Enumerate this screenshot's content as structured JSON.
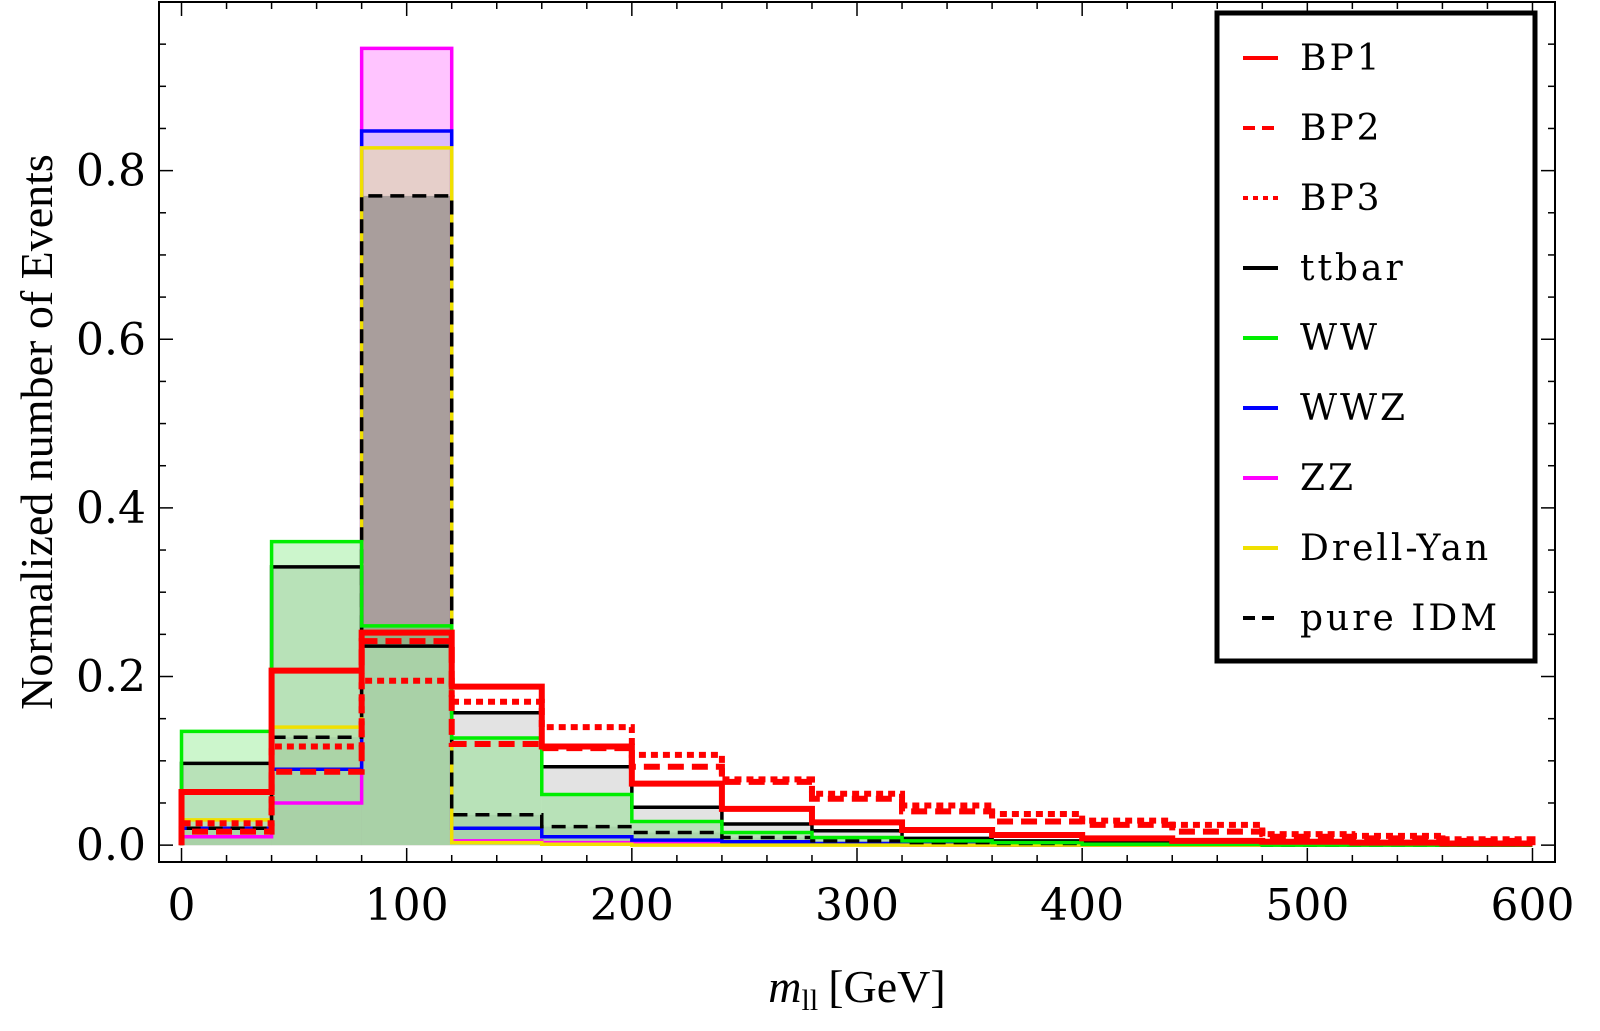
{
  "chart_data": {
    "type": "histogram",
    "title": "",
    "xlabel_italic": "m",
    "xlabel_sub": "ll",
    "xlabel_unit": "[GeV]",
    "ylabel": "Normalized number of Events",
    "xlim": [
      -10,
      610
    ],
    "ylim": [
      -0.02,
      1.0
    ],
    "x_ticks": [
      0,
      100,
      200,
      300,
      400,
      500,
      600
    ],
    "y_ticks": [
      0.0,
      0.2,
      0.4,
      0.6,
      0.8
    ],
    "y_tick_labels": [
      "0.0",
      "0.2",
      "0.4",
      "0.6",
      "0.8"
    ],
    "bin_edges": [
      0,
      40,
      80,
      120,
      160,
      200,
      240,
      280,
      320,
      360,
      400,
      440,
      480,
      520,
      560,
      600
    ],
    "legend_position": "top-right",
    "series": [
      {
        "name": "ZZ",
        "color": "#ff00ff",
        "style": "solid",
        "fill": "#ffb0ff",
        "fill_opacity": 0.75,
        "values": [
          0.01,
          0.05,
          0.945,
          0.005,
          0.003,
          0.002,
          0.001,
          0.001,
          0.0,
          0.0,
          0.0,
          0.0,
          0.0,
          0.0,
          0.0
        ]
      },
      {
        "name": "WWZ",
        "color": "#0000ff",
        "style": "solid",
        "fill": "#b0b0ff",
        "fill_opacity": 0.45,
        "values": [
          0.02,
          0.09,
          0.847,
          0.02,
          0.01,
          0.006,
          0.004,
          0.002,
          0.001,
          0.0,
          0.0,
          0.0,
          0.0,
          0.0,
          0.0
        ]
      },
      {
        "name": "Drell-Yan",
        "color": "#f0e000",
        "style": "solid",
        "fill": "#f5e98a",
        "fill_opacity": 0.45,
        "values": [
          0.03,
          0.14,
          0.827,
          0.003,
          0.001,
          0.0,
          0.0,
          0.0,
          0.0,
          0.0,
          0.0,
          0.0,
          0.0,
          0.0,
          0.0
        ]
      },
      {
        "name": "pure IDM",
        "color": "#000000",
        "style": "dashed",
        "fill": "#777777",
        "fill_opacity": 0.55,
        "values": [
          0.02,
          0.128,
          0.77,
          0.036,
          0.022,
          0.015,
          0.009,
          0.005,
          0.003,
          0.002,
          0.001,
          0.001,
          0.0,
          0.0,
          0.0
        ]
      },
      {
        "name": "ttbar",
        "color": "#000000",
        "style": "solid",
        "fill": "#d9d9d9",
        "fill_opacity": 0.75,
        "values": [
          0.097,
          0.33,
          0.236,
          0.157,
          0.093,
          0.045,
          0.025,
          0.017,
          0.008,
          0.005,
          0.003,
          0.002,
          0.001,
          0.001,
          0.0
        ]
      },
      {
        "name": "WW",
        "color": "#00ee00",
        "style": "solid",
        "fill": "#55e055",
        "fill_opacity": 0.3,
        "values": [
          0.135,
          0.36,
          0.26,
          0.127,
          0.06,
          0.028,
          0.015,
          0.009,
          0.005,
          0.003,
          0.001,
          0.001,
          0.0,
          0.0,
          0.0
        ]
      },
      {
        "name": "BP1",
        "color": "#ff0000",
        "style": "solid",
        "fill": "none",
        "fill_opacity": 0,
        "values": [
          0.063,
          0.207,
          0.252,
          0.188,
          0.117,
          0.073,
          0.043,
          0.027,
          0.018,
          0.012,
          0.008,
          0.005,
          0.004,
          0.003,
          0.002
        ]
      },
      {
        "name": "BP2",
        "color": "#ff0000",
        "style": "dashed",
        "fill": "none",
        "fill_opacity": 0,
        "values": [
          0.016,
          0.087,
          0.242,
          0.12,
          0.115,
          0.093,
          0.075,
          0.055,
          0.04,
          0.028,
          0.024,
          0.016,
          0.01,
          0.008,
          0.005
        ]
      },
      {
        "name": "BP3",
        "color": "#ff0000",
        "style": "dotted",
        "fill": "none",
        "fill_opacity": 0,
        "values": [
          0.026,
          0.117,
          0.195,
          0.17,
          0.14,
          0.107,
          0.078,
          0.061,
          0.047,
          0.037,
          0.029,
          0.024,
          0.013,
          0.011,
          0.007
        ]
      }
    ],
    "legend": [
      {
        "label": "BP1",
        "color": "#ff0000",
        "style": "solid"
      },
      {
        "label": "BP2",
        "color": "#ff0000",
        "style": "dashed"
      },
      {
        "label": "BP3",
        "color": "#ff0000",
        "style": "dotted"
      },
      {
        "label": "ttbar",
        "color": "#000000",
        "style": "solid"
      },
      {
        "label": "WW",
        "color": "#00ee00",
        "style": "solid"
      },
      {
        "label": "WWZ",
        "color": "#0000ff",
        "style": "solid"
      },
      {
        "label": "ZZ",
        "color": "#ff00ff",
        "style": "solid"
      },
      {
        "label": "Drell-Yan",
        "color": "#f0e000",
        "style": "solid"
      },
      {
        "label": "pure IDM",
        "color": "#000000",
        "style": "dashed"
      }
    ]
  }
}
